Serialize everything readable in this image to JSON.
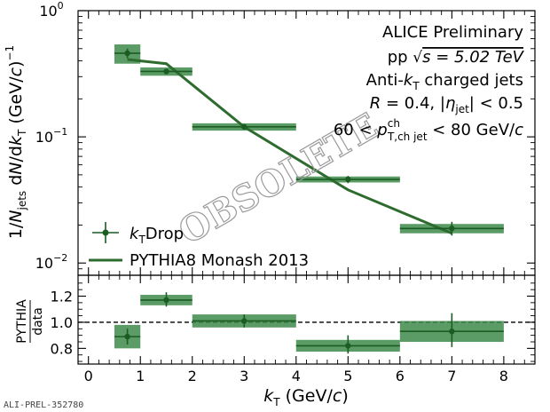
{
  "chart_data": [
    {
      "type": "scatter",
      "panel": "main",
      "yscale": "log",
      "ylim": [
        0.008,
        1.0
      ],
      "xlim": [
        -0.2,
        8.6
      ],
      "ylabel": "1/N_jets dN/dk_T (GeV/c)^-1",
      "y_ticks": [
        {
          "value": 1.0,
          "label": "10",
          "exp": "0"
        },
        {
          "value": 0.1,
          "label": "10",
          "exp": "−1"
        },
        {
          "value": 0.01,
          "label": "10",
          "exp": "−2"
        }
      ],
      "series": [
        {
          "name": "k_T Drop",
          "legend_main": "k",
          "legend_sub": "T",
          "legend_rest": "Drop",
          "color": "#1a5c22",
          "band_color": "#3e8a4a",
          "points": [
            {
              "x": 0.75,
              "xlo": 0.5,
              "xhi": 1.0,
              "y": 0.46,
              "ylo": 0.42,
              "yhi": 0.5,
              "syslo": 0.38,
              "syshi": 0.54
            },
            {
              "x": 1.5,
              "xlo": 1.0,
              "xhi": 2.0,
              "y": 0.33,
              "ylo": 0.315,
              "yhi": 0.345,
              "syslo": 0.305,
              "syshi": 0.355
            },
            {
              "x": 3.0,
              "xlo": 2.0,
              "xhi": 4.0,
              "y": 0.12,
              "ylo": 0.115,
              "yhi": 0.125,
              "syslo": 0.112,
              "syshi": 0.128
            },
            {
              "x": 5.0,
              "xlo": 4.0,
              "xhi": 6.0,
              "y": 0.046,
              "ylo": 0.043,
              "yhi": 0.049,
              "syslo": 0.0435,
              "syshi": 0.0485
            },
            {
              "x": 7.0,
              "xlo": 6.0,
              "xhi": 8.0,
              "y": 0.0188,
              "ylo": 0.0165,
              "yhi": 0.0212,
              "syslo": 0.0172,
              "syshi": 0.0204
            }
          ]
        },
        {
          "name": "PYTHIA8 Monash 2013",
          "type": "line",
          "color": "#2e6b2e",
          "x": [
            0.75,
            1.5,
            3.0,
            5.0,
            7.0
          ],
          "y": [
            0.41,
            0.38,
            0.12,
            0.038,
            0.0172
          ]
        }
      ],
      "annotations": {
        "line1": "ALICE Preliminary",
        "line2_pre": "pp ",
        "line2_post": "s = 5.02 TeV",
        "line3_pre": "Anti-",
        "line3_k": "k",
        "line3_sub": "T",
        "line3_post": " charged jets",
        "line4_r": "R",
        "line4_a": " = 0.4, |",
        "line4_eta": "η",
        "line4_sub": "jet",
        "line4_b": "| < 0.5",
        "line5_a": "60 < ",
        "line5_p": "p",
        "line5_sup": "ch",
        "line5_sub": "T,ch jet",
        "line5_b": " < 80 GeV/",
        "line5_c": "c"
      },
      "watermark": "OBSOLETE"
    },
    {
      "type": "scatter",
      "panel": "ratio",
      "ylim": [
        0.68,
        1.36
      ],
      "xlim": [
        -0.2,
        8.6
      ],
      "ylabel_num": "PYTHIA",
      "ylabel_den": "data",
      "y_ticks": [
        0.8,
        1.0,
        1.2
      ],
      "y_tick_labels": [
        "0.8",
        "1.0",
        "1.2"
      ],
      "x_ticks": [
        0,
        1,
        2,
        3,
        4,
        5,
        6,
        7,
        8
      ],
      "x_tick_labels": [
        "0",
        "1",
        "2",
        "3",
        "4",
        "5",
        "6",
        "7",
        "8"
      ],
      "xlabel_k": "k",
      "xlabel_sub": "T",
      "xlabel_rest": " (GeV/",
      "xlabel_c": "c",
      "xlabel_end": ")",
      "reference_line": 1.0,
      "points": [
        {
          "x": 0.75,
          "xlo": 0.5,
          "xhi": 1.0,
          "y": 0.89,
          "ylo": 0.83,
          "yhi": 0.95,
          "syslo": 0.8,
          "syshi": 0.98
        },
        {
          "x": 1.5,
          "xlo": 1.0,
          "xhi": 2.0,
          "y": 1.17,
          "ylo": 1.12,
          "yhi": 1.23,
          "syslo": 1.13,
          "syshi": 1.21
        },
        {
          "x": 3.0,
          "xlo": 2.0,
          "xhi": 4.0,
          "y": 1.01,
          "ylo": 0.96,
          "yhi": 1.06,
          "syslo": 0.96,
          "syshi": 1.06
        },
        {
          "x": 5.0,
          "xlo": 4.0,
          "xhi": 6.0,
          "y": 0.82,
          "ylo": 0.76,
          "yhi": 0.9,
          "syslo": 0.775,
          "syshi": 0.865
        },
        {
          "x": 7.0,
          "xlo": 6.0,
          "xhi": 8.0,
          "y": 0.93,
          "ylo": 0.81,
          "yhi": 1.07,
          "syslo": 0.85,
          "syshi": 1.01
        }
      ]
    }
  ],
  "footer": "ALI-PREL-352780"
}
